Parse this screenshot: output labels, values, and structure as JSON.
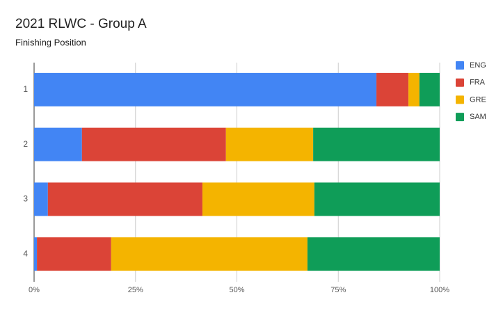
{
  "chart_data": {
    "type": "stacked-bar-horizontal",
    "title": "2021 RLWC - Group A",
    "subtitle": "Finishing Position",
    "categories": [
      "1",
      "2",
      "3",
      "4"
    ],
    "series": [
      {
        "name": "ENG",
        "color": "#4285f4",
        "values": [
          84.4,
          11.8,
          3.4,
          0.7
        ]
      },
      {
        "name": "FRA",
        "color": "#db4437",
        "values": [
          7.9,
          35.5,
          38.1,
          18.3
        ]
      },
      {
        "name": "GRE",
        "color": "#f4b400",
        "values": [
          2.7,
          21.5,
          27.6,
          48.4
        ]
      },
      {
        "name": "SAM",
        "color": "#0f9d58",
        "values": [
          5.0,
          31.2,
          30.9,
          32.6
        ]
      }
    ],
    "xlim": [
      0,
      100
    ],
    "xticks": [
      {
        "value": 0,
        "label": "0%"
      },
      {
        "value": 25,
        "label": "25%"
      },
      {
        "value": 50,
        "label": "50%"
      },
      {
        "value": 75,
        "label": "75%"
      },
      {
        "value": 100,
        "label": "100%"
      }
    ],
    "grid": true,
    "legend": "right"
  }
}
